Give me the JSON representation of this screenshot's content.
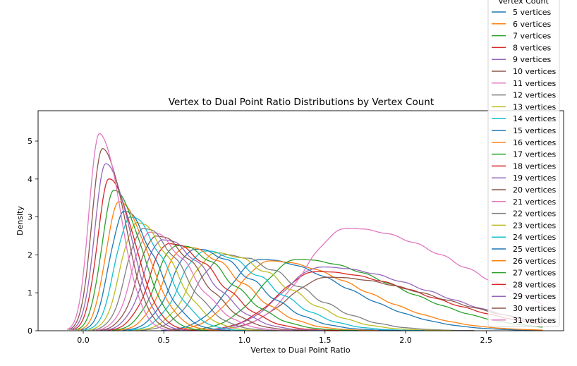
{
  "chart_data": {
    "type": "line",
    "title": "Vertex to Dual Point Ratio Distributions by Vertex Count",
    "xlabel": "Vertex to Dual Point Ratio",
    "ylabel": "Density",
    "xlim": [
      -0.28,
      2.98
    ],
    "ylim": [
      0,
      5.8
    ],
    "xticks": [
      0.0,
      0.5,
      1.0,
      1.5,
      2.0,
      2.5
    ],
    "xtick_labels": [
      "0.0",
      "0.5",
      "1.0",
      "1.5",
      "2.0",
      "2.5"
    ],
    "yticks": [
      0,
      1,
      2,
      3,
      4,
      5
    ],
    "ytick_labels": [
      "0",
      "1",
      "2",
      "3",
      "4",
      "5"
    ],
    "grid": false,
    "legend": {
      "title": "Vertex Count",
      "placement": "upper-right-outside"
    },
    "series": [
      {
        "name": "5 vertices",
        "color": "#1f77b4",
        "peak_x": 1.1,
        "peak_y": 1.88
      },
      {
        "name": "6 vertices",
        "color": "#ff7f0e",
        "peak_x": 1.16,
        "peak_y": 1.84
      },
      {
        "name": "7 vertices",
        "color": "#2ca02c",
        "peak_x": 1.33,
        "peak_y": 1.88
      },
      {
        "name": "8 vertices",
        "color": "#d62728",
        "peak_x": 1.45,
        "peak_y": 1.56
      },
      {
        "name": "9 vertices",
        "color": "#9467bd",
        "peak_x": 1.48,
        "peak_y": 1.68
      },
      {
        "name": "10 vertices",
        "color": "#8c564b",
        "peak_x": 1.52,
        "peak_y": 1.41
      },
      {
        "name": "11 vertices",
        "color": "#e377c2",
        "peak_x": 1.64,
        "peak_y": 2.7
      },
      {
        "name": "12 vertices",
        "color": "#7f7f7f",
        "peak_x": 0.88,
        "peak_y": 2.0
      },
      {
        "name": "13 vertices",
        "color": "#bcbd22",
        "peak_x": 0.82,
        "peak_y": 2.05
      },
      {
        "name": "14 vertices",
        "color": "#17becf",
        "peak_x": 0.75,
        "peak_y": 2.1
      },
      {
        "name": "15 vertices",
        "color": "#1f77b4",
        "peak_x": 0.69,
        "peak_y": 2.15
      },
      {
        "name": "16 vertices",
        "color": "#ff7f0e",
        "peak_x": 0.63,
        "peak_y": 2.2
      },
      {
        "name": "17 vertices",
        "color": "#2ca02c",
        "peak_x": 0.58,
        "peak_y": 2.25
      },
      {
        "name": "18 vertices",
        "color": "#d62728",
        "peak_x": 0.53,
        "peak_y": 2.3
      },
      {
        "name": "19 vertices",
        "color": "#9467bd",
        "peak_x": 0.49,
        "peak_y": 2.4
      },
      {
        "name": "20 vertices",
        "color": "#8c564b",
        "peak_x": 0.45,
        "peak_y": 2.5
      },
      {
        "name": "21 vertices",
        "color": "#e377c2",
        "peak_x": 0.41,
        "peak_y": 2.6
      },
      {
        "name": "22 vertices",
        "color": "#7f7f7f",
        "peak_x": 0.37,
        "peak_y": 2.7
      },
      {
        "name": "23 vertices",
        "color": "#bcbd22",
        "peak_x": 0.33,
        "peak_y": 2.85
      },
      {
        "name": "24 vertices",
        "color": "#17becf",
        "peak_x": 0.29,
        "peak_y": 3.0
      },
      {
        "name": "25 vertices",
        "color": "#1f77b4",
        "peak_x": 0.25,
        "peak_y": 3.15
      },
      {
        "name": "26 vertices",
        "color": "#ff7f0e",
        "peak_x": 0.22,
        "peak_y": 3.4
      },
      {
        "name": "27 vertices",
        "color": "#2ca02c",
        "peak_x": 0.19,
        "peak_y": 3.7
      },
      {
        "name": "28 vertices",
        "color": "#d62728",
        "peak_x": 0.16,
        "peak_y": 4.0
      },
      {
        "name": "29 vertices",
        "color": "#9467bd",
        "peak_x": 0.14,
        "peak_y": 4.4
      },
      {
        "name": "30 vertices",
        "color": "#8c564b",
        "peak_x": 0.12,
        "peak_y": 4.8
      },
      {
        "name": "31 vertices",
        "color": "#e377c2",
        "peak_x": 0.1,
        "peak_y": 5.2
      }
    ]
  }
}
